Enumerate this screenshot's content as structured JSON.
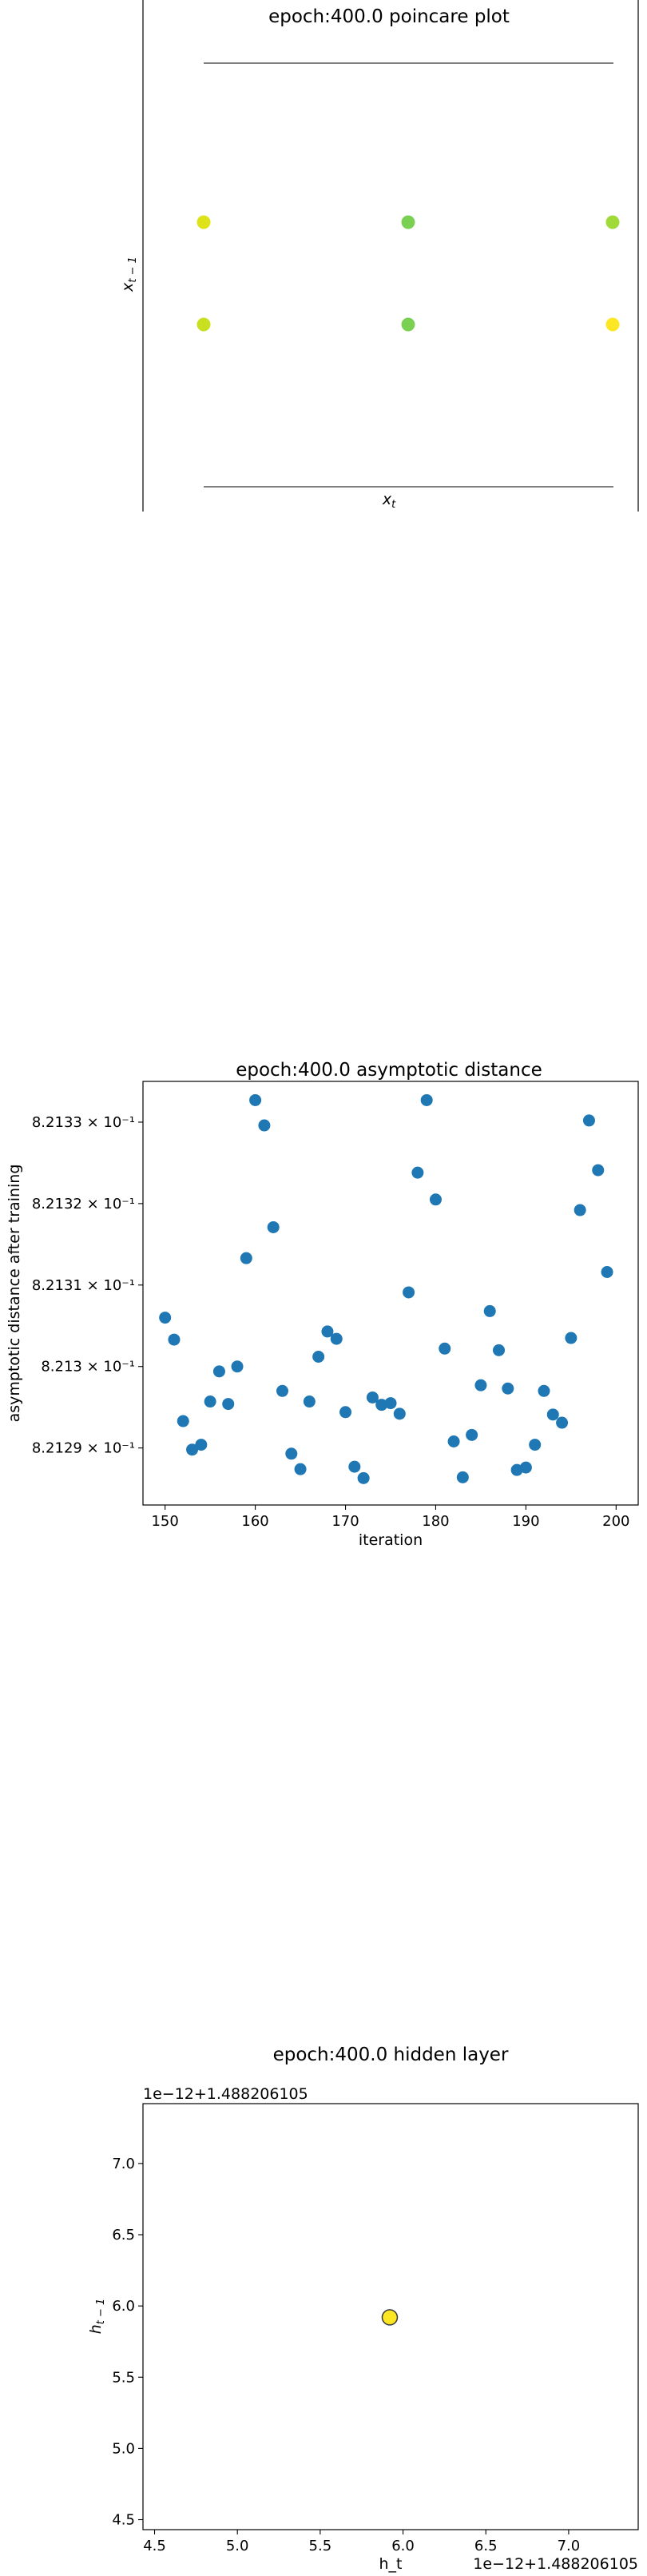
{
  "chart_data": [
    {
      "type": "scatter",
      "title": "epoch:400.0 poincare plot",
      "xlabel": "x_t",
      "ylabel": "x_{t-1}",
      "series": [
        {
          "x": [
            0,
            0.5,
            1.0,
            0,
            0.5,
            1.0
          ],
          "y": [
            1,
            1,
            1,
            0,
            0,
            0
          ],
          "colors": [
            "#dde318",
            "#7ad151",
            "#a0da39",
            "#c8e020",
            "#7ad151",
            "#fde725"
          ]
        }
      ],
      "grid": false
    },
    {
      "type": "scatter",
      "title": "epoch:400.0 asymptotic distance",
      "xlabel": "iteration",
      "ylabel": "asymptotic distance after training",
      "x_ticks": [
        "150",
        "160",
        "170",
        "180",
        "190",
        "200"
      ],
      "y_ticks": [
        "8.2129 × 10⁻¹",
        "8.213 × 10⁻¹",
        "8.2131 × 10⁻¹",
        "8.2132 × 10⁻¹",
        "8.2133 × 10⁻¹"
      ],
      "xlim": [
        147.55,
        202.45
      ],
      "ylim": [
        0.821283,
        0.821335
      ],
      "series": [
        {
          "color": "#1f77b4",
          "x": [
            150,
            151,
            152,
            153,
            154,
            155,
            156,
            157,
            158,
            159,
            160,
            161,
            162,
            163,
            164,
            165,
            166,
            167,
            168,
            169,
            170,
            171,
            172,
            173,
            174,
            175,
            176,
            177,
            178,
            179,
            180,
            181,
            182,
            183,
            184,
            185,
            186,
            187,
            188,
            189,
            190,
            191,
            192,
            193,
            194,
            195,
            196,
            197,
            198,
            199
          ],
          "y": [
            0.821306,
            0.8213033,
            0.8212933,
            0.8212898,
            0.8212904,
            0.8212957,
            0.8212994,
            0.8212954,
            0.8213,
            0.8213133,
            0.8213327,
            0.8213296,
            0.8213171,
            0.821297,
            0.8212893,
            0.8212874,
            0.8212957,
            0.8213012,
            0.8213043,
            0.8213034,
            0.8212944,
            0.8212877,
            0.8212863,
            0.8212962,
            0.8212953,
            0.8212955,
            0.8212942,
            0.8213091,
            0.8213238,
            0.8213327,
            0.8213205,
            0.8213022,
            0.8212908,
            0.8212864,
            0.8212916,
            0.8212977,
            0.8213068,
            0.821302,
            0.8212973,
            0.8212873,
            0.8212876,
            0.8212904,
            0.821297,
            0.8212941,
            0.8212931,
            0.8213035,
            0.8213192,
            0.8213302,
            0.8213241,
            0.8213116
          ]
        }
      ]
    },
    {
      "type": "scatter",
      "title": "epoch:400.0 hidden layer",
      "xlabel": "h_t",
      "ylabel": "h_{t-1}",
      "x_offset_text": "1e−12+1.488206105",
      "y_offset_text": "1e−12+1.488206105",
      "x_ticks": [
        "4.5",
        "5.0",
        "5.5",
        "6.0",
        "6.5",
        "7.0"
      ],
      "y_ticks": [
        "4.5",
        "5.0",
        "5.5",
        "6.0",
        "6.5",
        "7.0"
      ],
      "xlim": [
        4.43,
        7.42
      ],
      "ylim": [
        4.43,
        7.42
      ],
      "series": [
        {
          "x": [
            5.92
          ],
          "y": [
            5.92
          ],
          "colors": [
            "#fde725"
          ],
          "edge": "#3b3b3b"
        }
      ]
    }
  ]
}
